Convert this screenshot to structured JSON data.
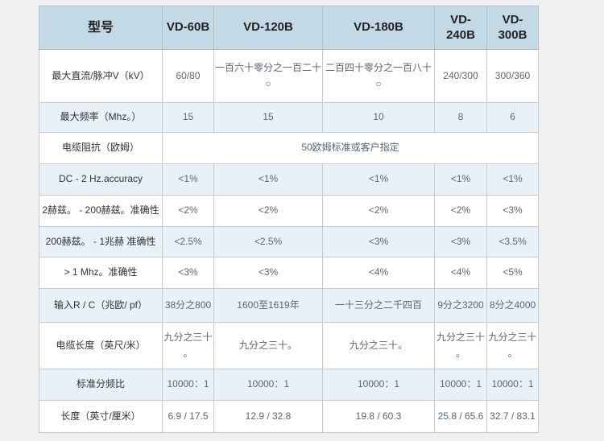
{
  "colors": {
    "page_bg": "#f0f0f0",
    "header_bg": "#c3d9e6",
    "shaded_row_bg": "#e9f1f8",
    "border": "#c9c9c9",
    "header_text": "#222222",
    "label_text": "#333333",
    "value_text": "#5a6673"
  },
  "chart_data": {
    "type": "table",
    "title": "",
    "columns": [
      "型号",
      "VD-60B",
      "VD-120B",
      "VD-180B",
      "VD-240B",
      "VD-300B"
    ],
    "rows": [
      [
        "最大直流/脉冲V（kV）",
        "60/80",
        "一百六十零分之一百二十\n○",
        "二百四十零分之一百八十\n○",
        "240/300",
        "300/360"
      ],
      [
        "最大频率（Mhz。）",
        "15",
        "15",
        "10",
        "8",
        "6"
      ],
      [
        "电缆阻抗（欧姆）",
        "50欧姆标准或客户指定"
      ],
      [
        "DC - 2 Hz.accuracy",
        "<1%",
        "<1%",
        "<1%",
        "<1%",
        "<1%"
      ],
      [
        "2赫兹。 - 200赫兹。准确性",
        "<2%",
        "<2%",
        "<2%",
        "<2%",
        "<3%"
      ],
      [
        "200赫兹。 - 1兆赫 准确性",
        "<2.5%",
        "<2.5%",
        "<3%",
        "<3%",
        "<3.5%"
      ],
      [
        "> 1 Mhz。准确性",
        "<3%",
        "<3%",
        "<4%",
        "<4%",
        "<5%"
      ],
      [
        "输入R / C（兆欧/ pf）",
        "38分之800",
        "1600至1619年",
        "一十三分之二千四百",
        "9分之3200",
        "8分之4000"
      ],
      [
        "电缆长度（英尺/米）",
        "九分之三十\n。",
        "九分之三十。",
        "九分之三十。",
        "九分之三十\n。",
        "九分之三十\n。"
      ],
      [
        "标准分频比",
        "10000：1",
        "10000：1",
        "10000：1",
        "10000：1",
        "10000：1"
      ],
      [
        "长度（英寸/厘米）",
        "6.9 / 17.5",
        "12.9 / 32.8",
        "19.8 / 60.3",
        "25.8 / 65.6",
        "32.7 / 83.1"
      ]
    ]
  },
  "table": {
    "header": [
      "型号",
      "VD-60B",
      "VD-120B",
      "VD-180B",
      "VD-240B",
      "VD-300B"
    ],
    "rows": [
      {
        "label": "最大直流/脉冲V（kV）",
        "cells": [
          "60/80",
          "一百六十零分之一百二十\n○",
          "二百四十零分之一百八十\n○",
          "240/300",
          "300/360"
        ],
        "shaded": false
      },
      {
        "label": "最大频率（Mhz。）",
        "cells": [
          "15",
          "15",
          "10",
          "8",
          "6"
        ],
        "shaded": true
      },
      {
        "label": "电缆阻抗（欧姆）",
        "cells": [
          "50欧姆标准或客户指定"
        ],
        "colspan": 5,
        "shaded": false
      },
      {
        "label": "DC - 2 Hz.accuracy",
        "cells": [
          "<1%",
          "<1%",
          "<1%",
          "<1%",
          "<1%"
        ],
        "shaded": true
      },
      {
        "label": "2赫兹。 - 200赫兹。准确性",
        "cells": [
          "<2%",
          "<2%",
          "<2%",
          "<2%",
          "<3%"
        ],
        "shaded": false
      },
      {
        "label": "200赫兹。 - 1兆赫 准确性",
        "cells": [
          "<2.5%",
          "<2.5%",
          "<3%",
          "<3%",
          "<3.5%"
        ],
        "shaded": true
      },
      {
        "label": "> 1 Mhz。准确性",
        "cells": [
          "<3%",
          "<3%",
          "<4%",
          "<4%",
          "<5%"
        ],
        "shaded": false
      },
      {
        "label": "输入R / C（兆欧/ pf）",
        "cells": [
          "38分之800",
          "1600至1619年",
          "一十三分之二千四百",
          "9分之3200",
          "8分之4000"
        ],
        "shaded": true
      },
      {
        "label": "电缆长度（英尺/米）",
        "cells": [
          "九分之三十\n。",
          "九分之三十。",
          "九分之三十。",
          "九分之三十\n。",
          "九分之三十\n。"
        ],
        "shaded": false
      },
      {
        "label": "标准分频比",
        "cells": [
          "10000：1",
          "10000：1",
          "10000：1",
          "10000：1",
          "10000：1"
        ],
        "shaded": true
      },
      {
        "label": "长度（英寸/厘米）",
        "cells": [
          "6.9 / 17.5",
          "12.9 / 32.8",
          "19.8 / 60.3",
          "25.8 / 65.6",
          "32.7 / 83.1"
        ],
        "shaded": false
      }
    ]
  }
}
